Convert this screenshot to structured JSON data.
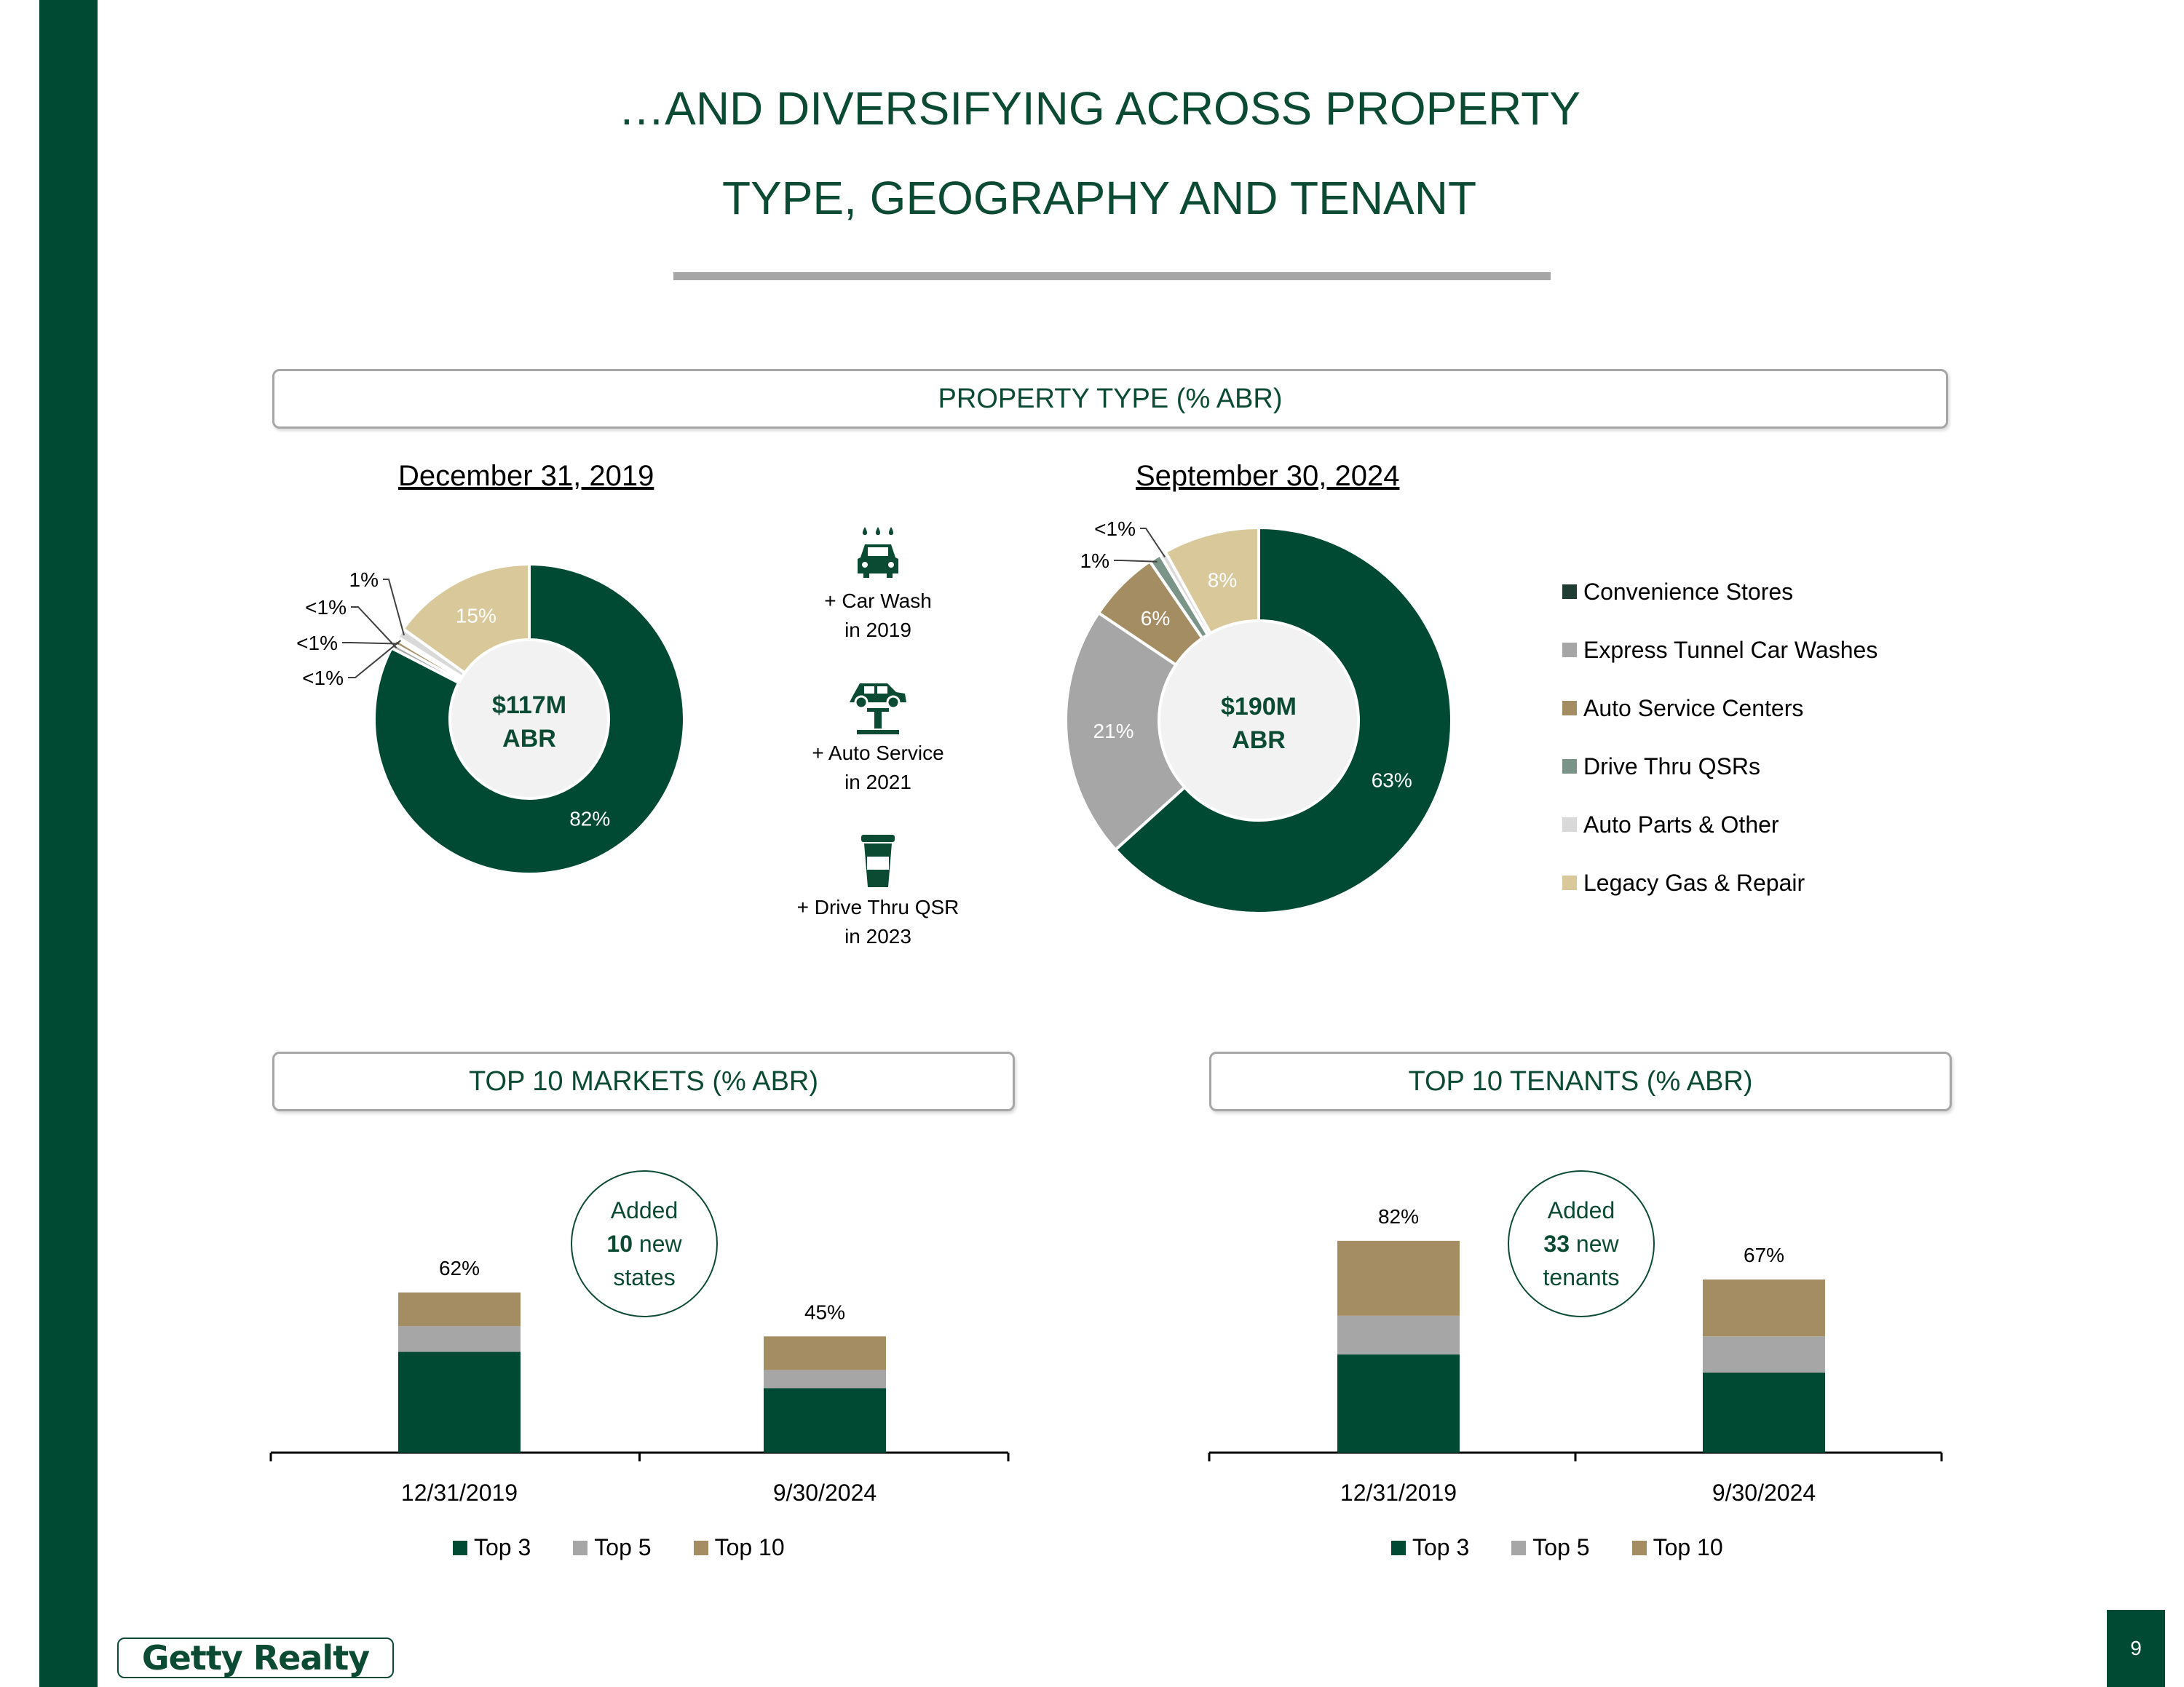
{
  "title": {
    "line1": "…AND DIVERSIFYING ACROSS PROPERTY",
    "line2": "TYPE, GEOGRAPHY AND TENANT"
  },
  "colors": {
    "brand_green": "#004A33",
    "gray": "#A6A6A6",
    "tan": "#A58D63",
    "sage": "#7A9488",
    "light_gray": "#D9D9D9",
    "beige": "#D9C99A",
    "convenience_swatch": "#1F3D33"
  },
  "sections": {
    "property_type": "PROPERTY TYPE (% ABR)",
    "top_markets": "TOP 10 MARKETS (% ABR)",
    "top_tenants": "TOP 10 TENANTS (% ABR)"
  },
  "milestones": [
    {
      "icon": "car-wash-icon",
      "line1": "+ Car Wash",
      "line2": "in 2019"
    },
    {
      "icon": "auto-service-icon",
      "line1": "+ Auto Service",
      "line2": "in 2021"
    },
    {
      "icon": "drink-cup-icon",
      "line1": "+ Drive Thru QSR",
      "line2": "in 2023"
    }
  ],
  "legend": [
    {
      "label": "Convenience Stores",
      "color": "#1F3D33"
    },
    {
      "label": "Express Tunnel Car Washes",
      "color": "#A6A6A6"
    },
    {
      "label": "Auto Service Centers",
      "color": "#A58D63"
    },
    {
      "label": "Drive Thru QSRs",
      "color": "#7A9488"
    },
    {
      "label": "Auto Parts & Other",
      "color": "#D9D9D9"
    },
    {
      "label": "Legacy Gas & Repair",
      "color": "#D9C99A"
    }
  ],
  "markets_callout": {
    "line1": "Added",
    "number": "10",
    "line2_suffix": " new",
    "line3": "states"
  },
  "tenants_callout": {
    "line1": "Added",
    "number": "33",
    "line2_suffix": " new",
    "line3": "tenants"
  },
  "bar_legend": [
    "Top 3",
    "Top 5",
    "Top 10"
  ],
  "logo_text": "Getty Realty",
  "page_number": "9",
  "chart_data": [
    {
      "type": "pie",
      "title": "December 31, 2019",
      "center_label": [
        "$117M",
        "ABR"
      ],
      "categories": [
        "Convenience Stores",
        "Express Tunnel Car Washes",
        "Auto Service Centers",
        "Drive Thru QSRs",
        "Auto Parts & Other",
        "Legacy Gas & Repair"
      ],
      "values": [
        82,
        0.5,
        0.5,
        0.3,
        1,
        15
      ],
      "value_labels": [
        "82%",
        "<1%",
        "<1%",
        "<1%",
        "1%",
        "15%"
      ]
    },
    {
      "type": "pie",
      "title": "September 30, 2024",
      "center_label": [
        "$190M",
        "ABR"
      ],
      "categories": [
        "Convenience Stores",
        "Express Tunnel Car Washes",
        "Auto Service Centers",
        "Drive Thru QSRs",
        "Auto Parts & Other",
        "Legacy Gas & Repair"
      ],
      "values": [
        63,
        21,
        6,
        1,
        0.5,
        8
      ],
      "value_labels": [
        "63%",
        "21%",
        "6%",
        "1%",
        "<1%",
        "8%"
      ]
    },
    {
      "type": "bar",
      "title": "TOP 10 MARKETS (% ABR)",
      "categories": [
        "12/31/2019",
        "9/30/2024"
      ],
      "series": [
        {
          "name": "Top 3",
          "values": [
            39,
            25
          ]
        },
        {
          "name": "Top 5",
          "values": [
            49,
            32
          ]
        },
        {
          "name": "Top 10",
          "values": [
            62,
            45
          ]
        }
      ],
      "totals": [
        "62%",
        "45%"
      ],
      "ylim": [
        0,
        90
      ]
    },
    {
      "type": "bar",
      "title": "TOP 10 TENANTS (% ABR)",
      "categories": [
        "12/31/2019",
        "9/30/2024"
      ],
      "series": [
        {
          "name": "Top 3",
          "values": [
            38,
            31
          ]
        },
        {
          "name": "Top 5",
          "values": [
            53,
            45
          ]
        },
        {
          "name": "Top 10",
          "values": [
            82,
            67
          ]
        }
      ],
      "totals": [
        "82%",
        "67%"
      ],
      "ylim": [
        0,
        90
      ]
    }
  ]
}
